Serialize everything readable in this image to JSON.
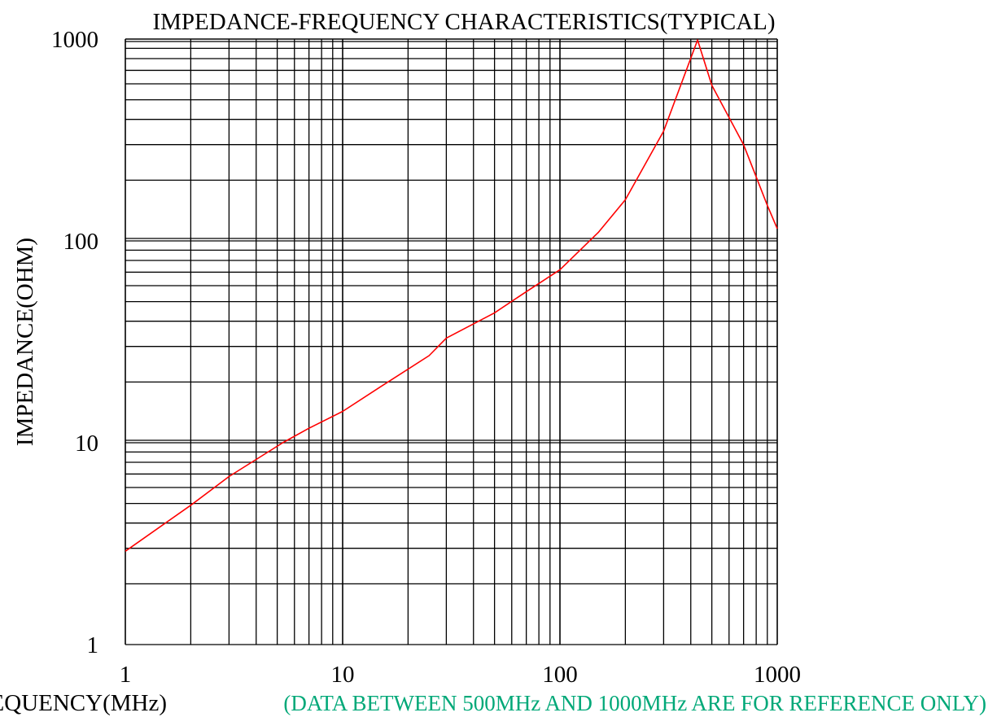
{
  "chart_data": {
    "type": "line",
    "title": "IMPEDANCE-FREQUENCY  CHARACTERISTICS(TYPICAL)",
    "xlabel": "FREQUENCY(MHz)",
    "ylabel": "IMPEDANCE(OHM)",
    "note": "(DATA BETWEEN 500MHz AND 1000MHz ARE FOR REFERENCE ONLY)",
    "x_scale": "log",
    "y_scale": "log",
    "xlim": [
      1,
      1000
    ],
    "ylim": [
      1,
      1000
    ],
    "x_ticks": [
      1,
      10,
      100,
      1000
    ],
    "x_tick_labels": [
      "1",
      "10",
      "100",
      "1000"
    ],
    "y_ticks": [
      1,
      10,
      100,
      1000
    ],
    "y_tick_labels": [
      "1",
      "10",
      "100",
      "1000"
    ],
    "grid": true,
    "series": [
      {
        "color": "#ff0000",
        "x": [
          1,
          2,
          3,
          5.3,
          7,
          10,
          15,
          25,
          30,
          50,
          70,
          100,
          150,
          200,
          300,
          430,
          500,
          700,
          900,
          1000
        ],
        "y": [
          2.9,
          4.9,
          6.8,
          10,
          11.8,
          14.3,
          19,
          27,
          33,
          44,
          56,
          72,
          110,
          160,
          350,
          990,
          590,
          300,
          150,
          115
        ]
      }
    ],
    "colors": {
      "grid": "#000000",
      "note": "#00a878",
      "text": "#000000"
    }
  }
}
